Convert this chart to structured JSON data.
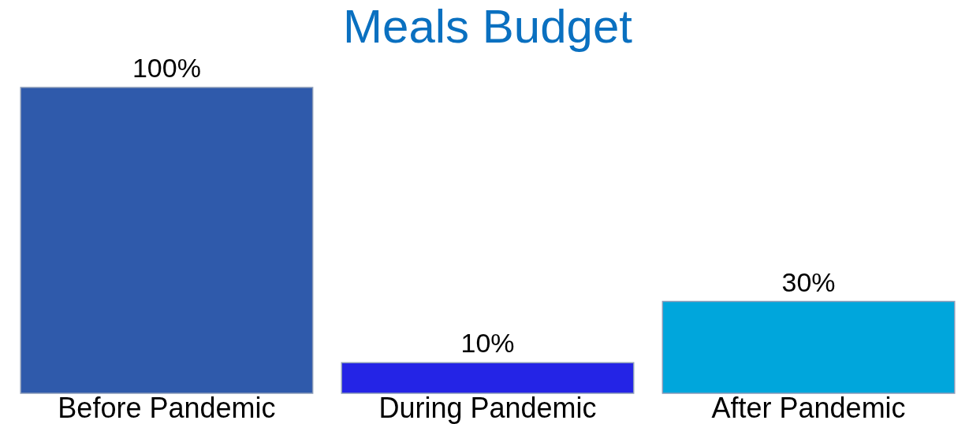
{
  "chart_data": {
    "type": "bar",
    "title": "Meals Budget",
    "categories": [
      "Before Pandemic",
      "During Pandemic",
      "After Pandemic"
    ],
    "values": [
      100,
      10,
      30
    ],
    "colors": [
      "#2f5aab",
      "#2424e6",
      "#00a6dc"
    ],
    "value_labels": [
      "100%",
      "10%",
      "30%"
    ]
  }
}
